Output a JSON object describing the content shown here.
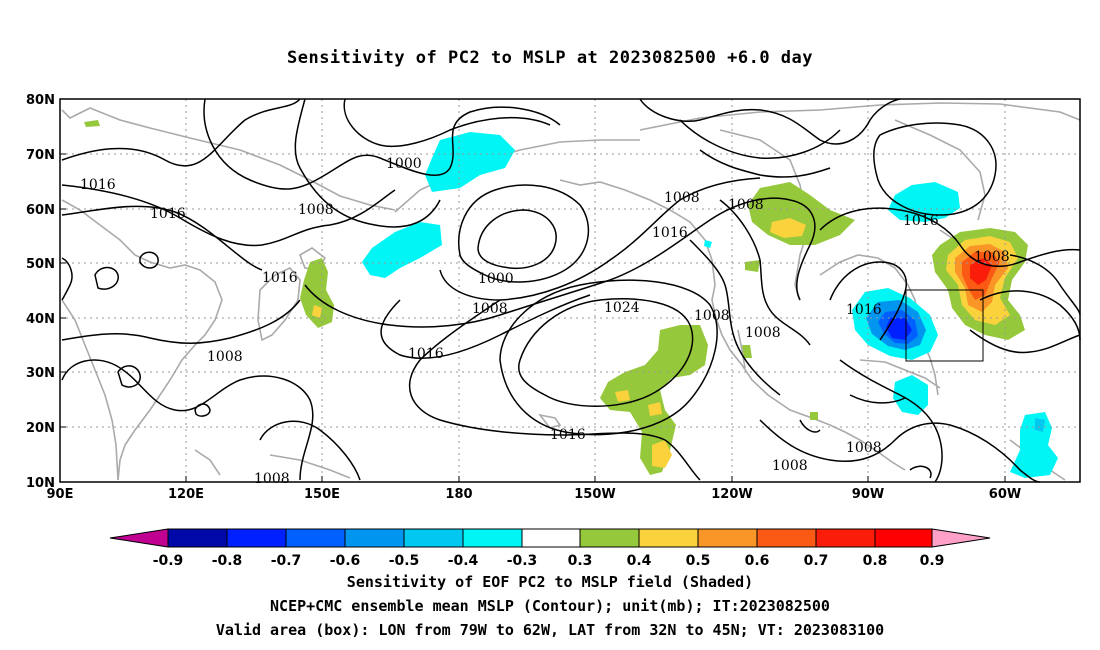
{
  "title": "Sensitivity of PC2 to MSLP at 2023082500 +6.0 day",
  "map": {
    "lat_labels": [
      "80N",
      "70N",
      "60N",
      "50N",
      "40N",
      "30N",
      "20N",
      "10N"
    ],
    "lon_labels": [
      "90E",
      "120E",
      "150E",
      "180",
      "150W",
      "120W",
      "90W",
      "60W"
    ],
    "contour_labels": [
      "1016",
      "1016",
      "1000",
      "1008",
      "1016",
      "1000",
      "1008",
      "1016",
      "1008",
      "1016",
      "1024",
      "1016",
      "1008",
      "1016",
      "1008",
      "1008",
      "1008",
      "1016",
      "1008",
      "1008",
      "1008",
      "1008"
    ],
    "valid_box": {
      "lon_from": "79W",
      "lon_to": "62W",
      "lat_from": "32N",
      "lat_to": "45N"
    }
  },
  "colorbar": {
    "labels": [
      "-0.9",
      "-0.8",
      "-0.7",
      "-0.6",
      "-0.5",
      "-0.4",
      "-0.3",
      "0.3",
      "0.4",
      "0.5",
      "0.6",
      "0.7",
      "0.8",
      "0.9"
    ],
    "colors": [
      "#bf0090",
      "#0008a8",
      "#0020ff",
      "#0060ff",
      "#0096f0",
      "#00c8f0",
      "#00f5f5",
      "#ffffff",
      "#96c83c",
      "#fad23c",
      "#fa9628",
      "#fa5a14",
      "#fa1e0a",
      "#ff0000",
      "#ffa0c8"
    ]
  },
  "captions": {
    "line1": "Sensitivity of EOF PC2 to MSLP field (Shaded)",
    "line2": "NCEP+CMC ensemble mean MSLP (Contour); unit(mb); IT:2023082500",
    "line3": "Valid area (box): LON from 79W to 62W, LAT from 32N to 45N; VT: 2023083100"
  }
}
